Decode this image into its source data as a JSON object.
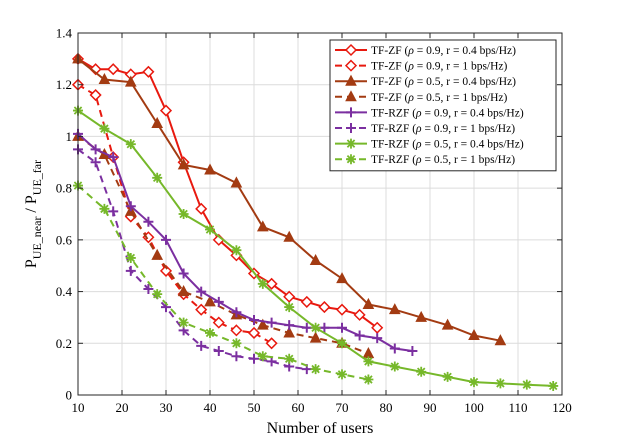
{
  "chart_data": {
    "type": "line",
    "title": "",
    "xlabel": "Number of users",
    "ylabel": {
      "main": "P",
      "sub1": "UE_near",
      "mid": " / P",
      "sub2": "UE_far"
    },
    "xlim": [
      10,
      120
    ],
    "ylim": [
      0,
      1.4
    ],
    "xticks": [
      "10",
      "20",
      "30",
      "40",
      "50",
      "60",
      "70",
      "80",
      "90",
      "100",
      "110",
      "120"
    ],
    "yticks": [
      "0",
      "0.2",
      "0.4",
      "0.6",
      "0.8",
      "1",
      "1.2",
      "1.4"
    ],
    "xtick_values": [
      10,
      20,
      30,
      40,
      50,
      60,
      70,
      80,
      90,
      100,
      110,
      120
    ],
    "ytick_values": [
      0,
      0.2,
      0.4,
      0.6,
      0.8,
      1.0,
      1.2,
      1.4
    ],
    "grid": true,
    "legend_position": "top-right",
    "series": [
      {
        "name": "TF-ZF (ρ = 0.9, r = 0.4 bps/Hz)",
        "name_prefix": "TF-ZF (",
        "name_rest": " = 0.9, r = 0.4 bps/Hz)",
        "color": "#e8190f",
        "dash": "solid",
        "marker": "diamond",
        "x": [
          10,
          14,
          18,
          22,
          26,
          30,
          34,
          38,
          42,
          46,
          50,
          54,
          58,
          62,
          66,
          70,
          74,
          78
        ],
        "y": [
          1.3,
          1.26,
          1.26,
          1.24,
          1.25,
          1.1,
          0.9,
          0.72,
          0.6,
          0.54,
          0.47,
          0.43,
          0.38,
          0.36,
          0.34,
          0.33,
          0.31,
          0.26
        ]
      },
      {
        "name": "TF-ZF (ρ = 0.9, r = 1 bps/Hz)",
        "name_prefix": "TF-ZF (",
        "name_rest": " = 0.9, r = 1 bps/Hz)",
        "color": "#e8190f",
        "dash": "dashed",
        "marker": "diamond",
        "x": [
          10,
          14,
          18,
          22,
          26,
          30,
          34,
          38,
          42,
          46,
          50,
          54
        ],
        "y": [
          1.2,
          1.16,
          0.92,
          0.69,
          0.61,
          0.48,
          0.39,
          0.33,
          0.28,
          0.25,
          0.24,
          0.2
        ]
      },
      {
        "name": "TF-ZF (ρ = 0.5, r = 0.4 bps/Hz)",
        "name_prefix": "TF-ZF (",
        "name_rest": " = 0.5, r = 0.4 bps/Hz)",
        "color": "#a33b12",
        "dash": "solid",
        "marker": "triangle",
        "x": [
          10,
          16,
          22,
          28,
          34,
          40,
          46,
          52,
          58,
          64,
          70,
          76,
          82,
          88,
          94,
          100,
          106
        ],
        "y": [
          1.3,
          1.22,
          1.21,
          1.05,
          0.89,
          0.87,
          0.82,
          0.65,
          0.61,
          0.52,
          0.45,
          0.35,
          0.33,
          0.3,
          0.27,
          0.23,
          0.21
        ]
      },
      {
        "name": "TF-ZF (ρ = 0.5, r = 1 bps/Hz)",
        "name_prefix": "TF-ZF (",
        "name_rest": " = 0.5, r = 1 bps/Hz)",
        "color": "#a33b12",
        "dash": "dashed",
        "marker": "triangle",
        "x": [
          10,
          16,
          22,
          28,
          34,
          40,
          46,
          52,
          58,
          64,
          70,
          76
        ],
        "y": [
          1.0,
          0.93,
          0.71,
          0.54,
          0.4,
          0.36,
          0.31,
          0.27,
          0.24,
          0.22,
          0.2,
          0.16
        ]
      },
      {
        "name": "TF-RZF (ρ = 0.9, r = 0.4 bps/Hz)",
        "name_prefix": "TF-RZF (",
        "name_rest": " = 0.9, r = 0.4 bps/Hz)",
        "color": "#7b2fa0",
        "dash": "solid",
        "marker": "plus",
        "x": [
          10,
          14,
          18,
          22,
          26,
          30,
          34,
          38,
          42,
          46,
          50,
          54,
          58,
          62,
          66,
          70,
          74,
          78,
          82,
          86
        ],
        "y": [
          1.01,
          0.95,
          0.92,
          0.73,
          0.67,
          0.6,
          0.47,
          0.4,
          0.36,
          0.32,
          0.29,
          0.28,
          0.27,
          0.26,
          0.26,
          0.26,
          0.23,
          0.22,
          0.18,
          0.17
        ]
      },
      {
        "name": "TF-RZF (ρ = 0.9, r = 1 bps/Hz)",
        "name_prefix": "TF-RZF (",
        "name_rest": " = 0.9, r = 1 bps/Hz)",
        "color": "#7b2fa0",
        "dash": "dashed",
        "marker": "plus",
        "x": [
          10,
          14,
          18,
          22,
          26,
          30,
          34,
          38,
          42,
          46,
          50,
          54,
          58,
          62
        ],
        "y": [
          0.95,
          0.9,
          0.71,
          0.48,
          0.41,
          0.34,
          0.25,
          0.19,
          0.17,
          0.15,
          0.14,
          0.13,
          0.11,
          0.1
        ]
      },
      {
        "name": "TF-RZF (ρ = 0.5, r = 0.4 bps/Hz)",
        "name_prefix": "TF-RZF (",
        "name_rest": " = 0.5, r = 0.4 bps/Hz)",
        "color": "#76b82a",
        "dash": "solid",
        "marker": "star",
        "x": [
          10,
          16,
          22,
          28,
          34,
          40,
          46,
          52,
          58,
          64,
          70,
          76,
          82,
          88,
          94,
          100,
          106,
          112,
          118
        ],
        "y": [
          1.1,
          1.03,
          0.97,
          0.84,
          0.7,
          0.64,
          0.56,
          0.43,
          0.34,
          0.26,
          0.2,
          0.13,
          0.11,
          0.09,
          0.07,
          0.05,
          0.045,
          0.04,
          0.035
        ]
      },
      {
        "name": "TF-RZF (ρ = 0.5, r = 1 bps/Hz)",
        "name_prefix": "TF-RZF (",
        "name_rest": " = 0.5, r = 1 bps/Hz)",
        "color": "#76b82a",
        "dash": "dashed",
        "marker": "star",
        "x": [
          10,
          16,
          22,
          28,
          34,
          40,
          46,
          52,
          58,
          64,
          70,
          76
        ],
        "y": [
          0.81,
          0.72,
          0.53,
          0.39,
          0.28,
          0.24,
          0.2,
          0.15,
          0.14,
          0.1,
          0.08,
          0.06
        ]
      }
    ]
  }
}
